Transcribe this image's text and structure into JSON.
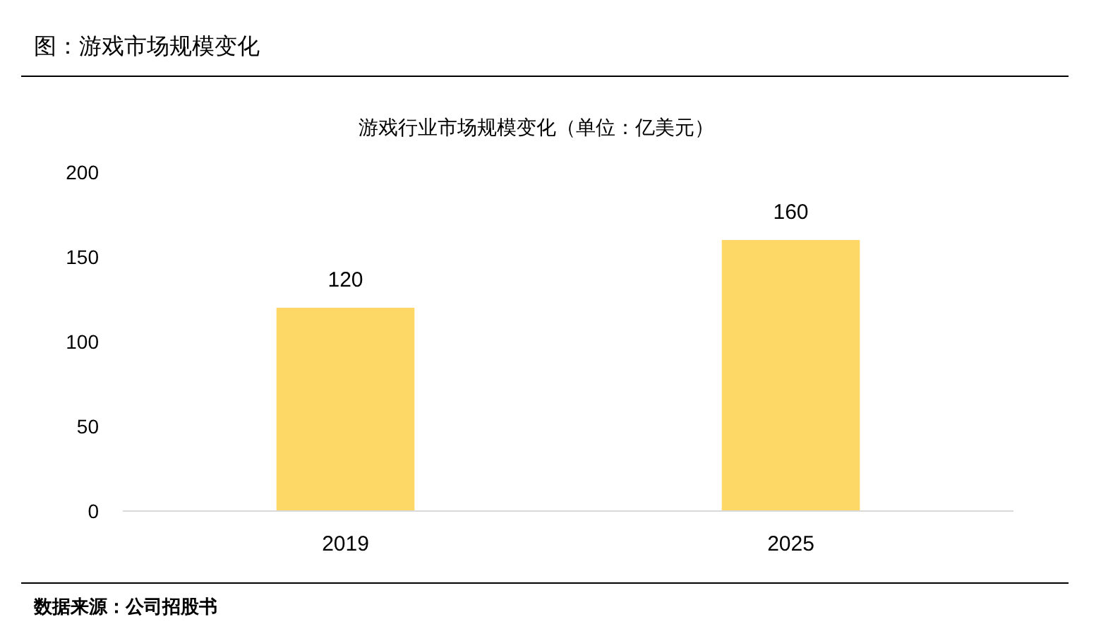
{
  "chart_data": {
    "type": "bar",
    "title": "图：游戏市场规模变化",
    "subtitle": "游戏行业市场规模变化（单位：亿美元）",
    "categories": [
      "2019",
      "2025"
    ],
    "values": [
      120,
      160
    ],
    "color": "#fdd866",
    "ylim": [
      0,
      200
    ],
    "yticks": [
      0,
      50,
      100,
      150,
      200
    ],
    "data_labels": true,
    "annotations": [
      "数据来源：公司招股书"
    ]
  }
}
